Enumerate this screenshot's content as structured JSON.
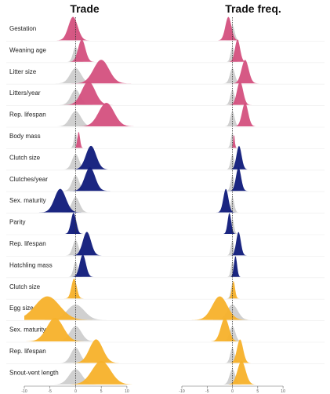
{
  "chart_data": {
    "type": "ridgeline",
    "panels": [
      {
        "title": "Trade"
      },
      {
        "title": "Trade freq."
      }
    ],
    "xlim": [
      -10,
      12
    ],
    "x_ticks": [
      -10,
      -5,
      0,
      5,
      10
    ],
    "reference_line": 0,
    "grid": false,
    "group_colors": {
      "mammals": "#d4507e",
      "birds": "#0f1a7a",
      "reptiles": "#f7b12a",
      "reference": "#c8c8c8"
    },
    "rows": [
      {
        "label": "Gestation",
        "group": "mammals",
        "trade": {
          "mean": -0.5,
          "sd": 0.9,
          "h": 1.0
        },
        "trade_freq": {
          "mean": -0.8,
          "sd": 0.6,
          "h": 1.0
        }
      },
      {
        "label": "Weaning age",
        "group": "mammals",
        "trade": {
          "mean": 1.2,
          "sd": 0.7,
          "h": 0.95
        },
        "trade_freq": {
          "mean": 1.0,
          "sd": 0.5,
          "h": 0.95
        }
      },
      {
        "label": "Litter size",
        "group": "mammals",
        "trade": {
          "mean": 5.0,
          "sd": 1.5,
          "h": 1.0
        },
        "trade_freq": {
          "mean": 2.5,
          "sd": 0.7,
          "h": 1.0
        }
      },
      {
        "label": "Litters/year",
        "group": "mammals",
        "trade": {
          "mean": 2.5,
          "sd": 1.3,
          "h": 1.0
        },
        "trade_freq": {
          "mean": 1.5,
          "sd": 0.6,
          "h": 1.0
        }
      },
      {
        "label": "Rep. lifespan",
        "group": "mammals",
        "trade": {
          "mean": 6.0,
          "sd": 1.5,
          "h": 1.0
        },
        "trade_freq": {
          "mean": 2.5,
          "sd": 0.6,
          "h": 1.0
        }
      },
      {
        "label": "Body mass",
        "group": "mammals",
        "trade": {
          "mean": 0.6,
          "sd": 0.25,
          "h": 0.7
        },
        "trade_freq": {
          "mean": 0.3,
          "sd": 0.15,
          "h": 0.6
        }
      },
      {
        "label": "Clutch size",
        "group": "birds",
        "trade": {
          "mean": 3.0,
          "sd": 1.0,
          "h": 1.0
        },
        "trade_freq": {
          "mean": 1.3,
          "sd": 0.5,
          "h": 1.0
        }
      },
      {
        "label": "Clutches/year",
        "group": "birds",
        "trade": {
          "mean": 2.8,
          "sd": 1.0,
          "h": 1.0
        },
        "trade_freq": {
          "mean": 1.2,
          "sd": 0.5,
          "h": 1.0
        }
      },
      {
        "label": "Sex. maturity",
        "group": "birds",
        "trade": {
          "mean": -3.0,
          "sd": 1.1,
          "h": 1.0
        },
        "trade_freq": {
          "mean": -1.3,
          "sd": 0.5,
          "h": 1.0
        }
      },
      {
        "label": "Parity",
        "group": "birds",
        "trade": {
          "mean": -0.4,
          "sd": 0.5,
          "h": 0.9
        },
        "trade_freq": {
          "mean": -0.6,
          "sd": 0.35,
          "h": 0.9
        }
      },
      {
        "label": "Rep. lifespan",
        "group": "birds",
        "trade": {
          "mean": 2.2,
          "sd": 0.8,
          "h": 1.0
        },
        "trade_freq": {
          "mean": 1.2,
          "sd": 0.45,
          "h": 1.0
        }
      },
      {
        "label": "Hatchling mass",
        "group": "birds",
        "trade": {
          "mean": 1.4,
          "sd": 0.6,
          "h": 0.95
        },
        "trade_freq": {
          "mean": 0.6,
          "sd": 0.3,
          "h": 0.9
        }
      },
      {
        "label": "Clutch size",
        "group": "reptiles",
        "trade": {
          "mean": -0.3,
          "sd": 0.5,
          "h": 0.85
        },
        "trade_freq": {
          "mean": 0.2,
          "sd": 0.3,
          "h": 0.75
        }
      },
      {
        "label": "Egg size",
        "group": "reptiles",
        "trade": {
          "mean": -5.5,
          "sd": 2.4,
          "h": 1.0
        },
        "trade_freq": {
          "mean": -2.5,
          "sd": 1.5,
          "h": 1.0
        }
      },
      {
        "label": "Sex. maturity",
        "group": "reptiles",
        "trade": {
          "mean": -4.0,
          "sd": 1.6,
          "h": 1.0
        },
        "trade_freq": {
          "mean": -1.5,
          "sd": 0.8,
          "h": 1.0
        }
      },
      {
        "label": "Rep. lifespan",
        "group": "reptiles",
        "trade": {
          "mean": 4.0,
          "sd": 1.3,
          "h": 1.0
        },
        "trade_freq": {
          "mean": 1.5,
          "sd": 0.6,
          "h": 1.0
        }
      },
      {
        "label": "Snout-vent length",
        "group": "reptiles",
        "trade": {
          "mean": 5.0,
          "sd": 1.8,
          "h": 1.0
        },
        "trade_freq": {
          "mean": 1.8,
          "sd": 0.8,
          "h": 1.0
        }
      }
    ]
  }
}
